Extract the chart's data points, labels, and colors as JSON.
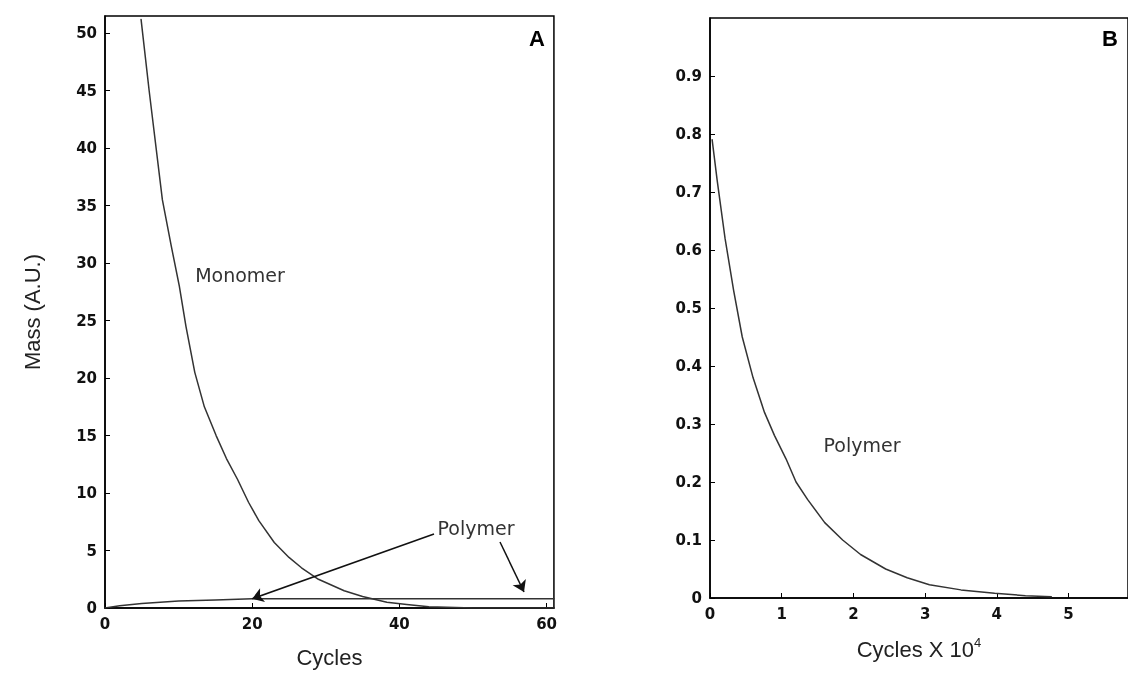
{
  "chart_data": [
    {
      "type": "line",
      "xlabel": "Cycles",
      "ylabel": "Mass (A.U.)",
      "xlim": [
        0,
        61
      ],
      "ylim": [
        0,
        51.5
      ],
      "xticks": [
        0,
        20,
        40,
        60
      ],
      "yticks": [
        0,
        5,
        10,
        15,
        20,
        25,
        30,
        35,
        40,
        45,
        50
      ],
      "marker": "none",
      "line_style": "solid",
      "series": [
        {
          "color": "#333333",
          "x": [
            4.9,
            6,
            7.8,
            9,
            10.1,
            11,
            12.2,
            13.5,
            15.1,
            16.5,
            18,
            19.5,
            20.9,
            23,
            25,
            26.7,
            29,
            32.5,
            35,
            38.3,
            41,
            44,
            50,
            61
          ],
          "values": [
            51.2,
            45,
            35.5,
            31.5,
            28,
            24.5,
            20.5,
            17.5,
            15,
            13,
            11.2,
            9.2,
            7.6,
            5.7,
            4.4,
            3.5,
            2.5,
            1.5,
            1,
            0.5,
            0.3,
            0.1,
            0,
            0
          ]
        },
        {
          "color": "#333333",
          "x": [
            0,
            2,
            5,
            10,
            15,
            20,
            30,
            40,
            50,
            61
          ],
          "values": [
            0,
            0.2,
            0.4,
            0.6,
            0.7,
            0.8,
            0.8,
            0.8,
            0.8,
            0.8
          ]
        }
      ],
      "annotations": [
        "Monomer",
        {
          "text": "Polymer",
          "x": 20,
          "y": 0.8
        },
        "A"
      ]
    },
    {
      "type": "line",
      "xlabel": "Cycles X 10$^{4}$",
      "xlim": [
        0,
        5.83
      ],
      "ylim": [
        0,
        1
      ],
      "xticks": [
        0,
        1,
        2,
        3,
        4,
        5
      ],
      "yticks": [
        0,
        0.1,
        0.2,
        0.3,
        0.4,
        0.5,
        0.6,
        0.7,
        0.8,
        0.9
      ],
      "marker": "none",
      "line_style": "solid",
      "series": [
        {
          "color": "#333333",
          "x": [
            0.03,
            0.1,
            0.21,
            0.33,
            0.45,
            0.6,
            0.76,
            0.9,
            1.06,
            1.2,
            1.36,
            1.6,
            1.85,
            2.1,
            2.45,
            2.75,
            3.06,
            3.5,
            3.97,
            4.4,
            4.76
          ],
          "values": [
            0.79,
            0.72,
            0.62,
            0.53,
            0.45,
            0.38,
            0.32,
            0.28,
            0.24,
            0.2,
            0.17,
            0.13,
            0.1,
            0.075,
            0.05,
            0.035,
            0.023,
            0.014,
            0.008,
            0.004,
            0.002
          ]
        }
      ],
      "annotations": [
        "Polymer",
        "B"
      ]
    }
  ]
}
